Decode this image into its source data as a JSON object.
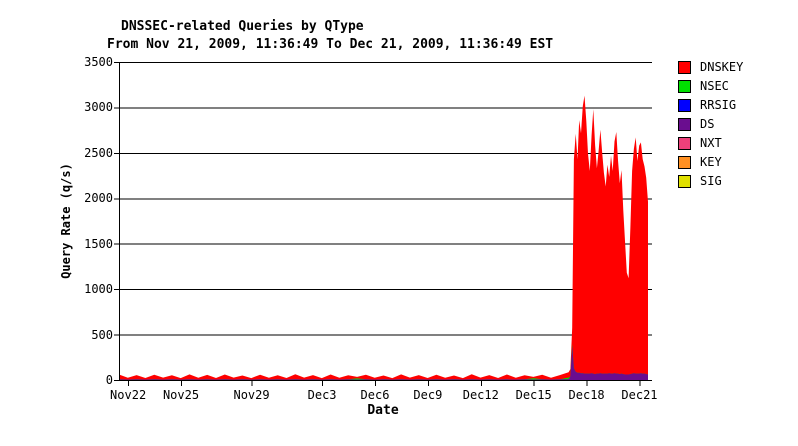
{
  "chart_data": {
    "type": "area",
    "stacked": true,
    "title": "DNSSEC-related Queries by QType",
    "subtitle": "From Nov 21, 2009, 11:36:49 To Dec 21, 2009, 11:36:49 EST",
    "xlabel": "Date",
    "ylabel": "Query Rate (q/s)",
    "ylim": [
      0,
      3500
    ],
    "y_ticks": [
      0,
      500,
      1000,
      1500,
      2000,
      2500,
      3000,
      3500
    ],
    "x_range_days": [
      0,
      30
    ],
    "x_ticks": [
      {
        "day": 0.517,
        "label": "Nov22"
      },
      {
        "day": 3.517,
        "label": "Nov25"
      },
      {
        "day": 7.517,
        "label": "Nov29"
      },
      {
        "day": 11.517,
        "label": "Dec3"
      },
      {
        "day": 14.517,
        "label": "Dec6"
      },
      {
        "day": 17.517,
        "label": "Dec9"
      },
      {
        "day": 20.517,
        "label": "Dec12"
      },
      {
        "day": 23.517,
        "label": "Dec15"
      },
      {
        "day": 26.517,
        "label": "Dec18"
      },
      {
        "day": 29.517,
        "label": "Dec21"
      }
    ],
    "grid": "horizontal",
    "legend_position": "right",
    "legend": [
      {
        "label": "DNSKEY",
        "color": "#ff0000"
      },
      {
        "label": "NSEC",
        "color": "#00e000"
      },
      {
        "label": "RRSIG",
        "color": "#0000ff"
      },
      {
        "label": "DS",
        "color": "#6a0d8f"
      },
      {
        "label": "NXT",
        "color": "#ee407a"
      },
      {
        "label": "KEY",
        "color": "#ff9022"
      },
      {
        "label": "SIG",
        "color": "#e0e000"
      }
    ],
    "stack_order_bottom_to_top": [
      "DS",
      "NSEC",
      "DNSKEY"
    ],
    "samples": {
      "columns": [
        "day",
        "DNSKEY",
        "DS",
        "NSEC"
      ],
      "rows": [
        [
          0,
          52,
          8,
          0
        ],
        [
          0.5,
          18,
          6,
          0
        ],
        [
          1,
          46,
          8,
          0
        ],
        [
          1.5,
          16,
          6,
          0
        ],
        [
          2,
          50,
          8,
          0
        ],
        [
          2.5,
          20,
          6,
          0
        ],
        [
          3,
          44,
          8,
          0
        ],
        [
          3.5,
          15,
          6,
          0
        ],
        [
          4,
          54,
          8,
          0
        ],
        [
          4.5,
          18,
          6,
          0
        ],
        [
          5,
          48,
          8,
          0
        ],
        [
          5.5,
          16,
          6,
          0
        ],
        [
          6,
          52,
          8,
          0
        ],
        [
          6.5,
          20,
          6,
          0
        ],
        [
          7,
          42,
          8,
          0
        ],
        [
          7.5,
          15,
          6,
          0
        ],
        [
          8,
          50,
          8,
          0
        ],
        [
          8.5,
          18,
          6,
          0
        ],
        [
          9,
          44,
          8,
          0
        ],
        [
          9.5,
          16,
          6,
          0
        ],
        [
          10,
          56,
          8,
          0
        ],
        [
          10.5,
          20,
          6,
          0
        ],
        [
          11,
          46,
          8,
          0
        ],
        [
          11.5,
          15,
          6,
          0
        ],
        [
          12,
          52,
          8,
          0
        ],
        [
          12.5,
          18,
          6,
          0
        ],
        [
          13,
          44,
          8,
          0
        ],
        [
          13.5,
          16,
          6,
          12
        ],
        [
          14,
          50,
          8,
          0
        ],
        [
          14.5,
          18,
          6,
          0
        ],
        [
          15,
          42,
          8,
          0
        ],
        [
          15.5,
          15,
          6,
          0
        ],
        [
          16,
          54,
          8,
          0
        ],
        [
          16.5,
          20,
          6,
          0
        ],
        [
          17,
          46,
          8,
          0
        ],
        [
          17.5,
          16,
          6,
          0
        ],
        [
          18,
          50,
          8,
          0
        ],
        [
          18.5,
          18,
          6,
          0
        ],
        [
          19,
          42,
          8,
          0
        ],
        [
          19.5,
          15,
          6,
          0
        ],
        [
          20,
          56,
          8,
          0
        ],
        [
          20.5,
          20,
          6,
          0
        ],
        [
          21,
          46,
          8,
          0
        ],
        [
          21.5,
          16,
          6,
          0
        ],
        [
          22,
          52,
          8,
          0
        ],
        [
          22.5,
          18,
          6,
          0
        ],
        [
          23,
          44,
          8,
          0
        ],
        [
          23.5,
          15,
          6,
          13
        ],
        [
          24,
          50,
          8,
          0
        ],
        [
          24.5,
          18,
          6,
          0
        ],
        [
          25,
          46,
          8,
          0
        ],
        [
          25.5,
          60,
          10,
          16
        ],
        [
          25.6,
          80,
          40,
          0
        ],
        [
          25.7,
          180,
          380,
          15
        ],
        [
          25.8,
          2300,
          130,
          0
        ],
        [
          25.9,
          2620,
          90,
          0
        ],
        [
          26,
          2350,
          80,
          0
        ],
        [
          26.1,
          2780,
          80,
          0
        ],
        [
          26.2,
          2640,
          75,
          0
        ],
        [
          26.3,
          2940,
          75,
          0
        ],
        [
          26.4,
          3060,
          70,
          0
        ],
        [
          26.5,
          2780,
          70,
          0
        ],
        [
          26.6,
          2420,
          70,
          0
        ],
        [
          26.7,
          2230,
          70,
          0
        ],
        [
          26.8,
          2620,
          75,
          0
        ],
        [
          26.9,
          2910,
          70,
          0
        ],
        [
          27,
          2520,
          65,
          0
        ],
        [
          27.1,
          2260,
          70,
          0
        ],
        [
          27.2,
          2450,
          70,
          0
        ],
        [
          27.3,
          2680,
          75,
          0
        ],
        [
          27.4,
          2430,
          70,
          0
        ],
        [
          27.5,
          2210,
          70,
          0
        ],
        [
          27.6,
          2060,
          70,
          0
        ],
        [
          27.7,
          2300,
          70,
          0
        ],
        [
          27.8,
          2160,
          75,
          0
        ],
        [
          27.9,
          2400,
          70,
          0
        ],
        [
          28,
          2230,
          70,
          0
        ],
        [
          28.1,
          2550,
          75,
          0
        ],
        [
          28.2,
          2660,
          70,
          0
        ],
        [
          28.3,
          2350,
          70,
          0
        ],
        [
          28.4,
          2100,
          65,
          0
        ],
        [
          28.5,
          2240,
          70,
          0
        ],
        [
          28.6,
          1800,
          65,
          0
        ],
        [
          28.7,
          1450,
          60,
          0
        ],
        [
          28.8,
          1120,
          60,
          0
        ],
        [
          28.9,
          1060,
          60,
          0
        ],
        [
          29,
          1620,
          65,
          0
        ],
        [
          29.1,
          2230,
          70,
          0
        ],
        [
          29.2,
          2470,
          75,
          0
        ],
        [
          29.3,
          2600,
          70,
          0
        ],
        [
          29.4,
          2340,
          70,
          0
        ],
        [
          29.5,
          2510,
          70,
          0
        ],
        [
          29.6,
          2540,
          75,
          0
        ],
        [
          29.7,
          2360,
          70,
          0
        ],
        [
          29.8,
          2280,
          70,
          0
        ],
        [
          29.9,
          2160,
          65,
          0
        ],
        [
          30,
          1900,
          60,
          0
        ]
      ]
    },
    "colors": {
      "axis": "#000000",
      "grid": "#000000",
      "background": "#ffffff",
      "DNSKEY": "#ff0000",
      "NSEC": "#00e000",
      "DS": "#6a0d8f"
    }
  }
}
